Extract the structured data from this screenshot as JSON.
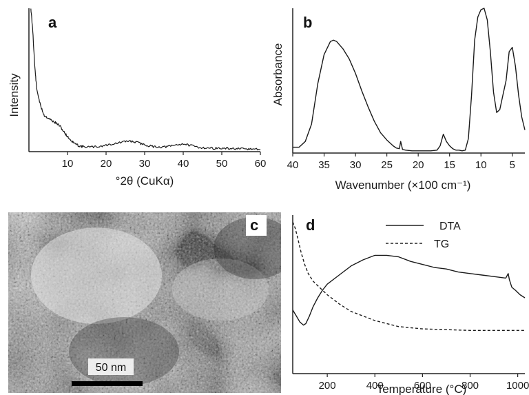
{
  "chart_data": [
    {
      "panel": "a",
      "type": "line",
      "xlabel": "°2θ (CuKα)",
      "ylabel": "Intensity",
      "xlim": [
        0,
        60
      ],
      "xticks": [
        10,
        20,
        30,
        40,
        50,
        60
      ],
      "series": [
        {
          "x": [
            0.5,
            1,
            1.5,
            2,
            3,
            4,
            5,
            6,
            7,
            8,
            9,
            10,
            11,
            12,
            13,
            14,
            16,
            18,
            20,
            22,
            24,
            26,
            28,
            30,
            32,
            34,
            36,
            38,
            40,
            42,
            44,
            46,
            48,
            50,
            52,
            54,
            56,
            58,
            60
          ],
          "y": [
            100,
            84,
            60,
            44,
            32,
            25,
            23.5,
            21.5,
            20,
            18,
            14,
            10.5,
            7.5,
            5.5,
            4,
            3.5,
            3.2,
            3.5,
            4.5,
            5.5,
            6.5,
            7.5,
            6.5,
            4.8,
            3.6,
            3.2,
            3.5,
            4.6,
            5.5,
            4.2,
            3,
            2.6,
            2.4,
            2.2,
            2.2,
            2,
            1.8,
            1.8,
            1.6
          ]
        }
      ]
    },
    {
      "panel": "b",
      "type": "line",
      "xlabel": "Wavenumber (×100 cm⁻¹)",
      "ylabel": "Absorbance",
      "xlim": [
        40,
        3
      ],
      "xticks": [
        40,
        35,
        30,
        25,
        20,
        15,
        10,
        5
      ],
      "series": [
        {
          "x": [
            40,
            39,
            38,
            37,
            36,
            35,
            34,
            33.5,
            33,
            32,
            31,
            30,
            29,
            28,
            27,
            26,
            25,
            24,
            23.5,
            23,
            22.8,
            22.5,
            22,
            21,
            20,
            19,
            18,
            17,
            16.5,
            16,
            15.5,
            15,
            14.5,
            14,
            13.5,
            13,
            12.5,
            12,
            11.5,
            11,
            10.5,
            10,
            9.5,
            9,
            8.5,
            8,
            7.5,
            7,
            6.5,
            6,
            5.5,
            5,
            4.5,
            4,
            3.5,
            3
          ],
          "y": [
            4,
            4,
            8,
            20,
            48,
            68,
            77,
            78,
            77,
            72,
            65,
            55,
            43,
            32,
            22,
            14,
            9,
            5,
            3.5,
            3,
            8,
            2.5,
            2,
            1.5,
            1.5,
            1.5,
            1.5,
            2,
            5,
            13,
            8,
            5,
            3,
            2,
            2,
            1.5,
            2,
            10,
            40,
            78,
            94,
            99,
            100,
            92,
            70,
            42,
            28,
            30,
            40,
            50,
            70,
            73,
            60,
            40,
            25,
            16
          ]
        }
      ]
    },
    {
      "panel": "c",
      "type": "image",
      "scale_bar": "50 nm"
    },
    {
      "panel": "d",
      "type": "line",
      "xlabel": "Temperature (°C)",
      "xlim": [
        55,
        1030
      ],
      "xticks": [
        200,
        400,
        600,
        800,
        1000
      ],
      "legend_position": "top-right",
      "series": [
        {
          "name": "DTA",
          "style": "solid",
          "x": [
            55,
            70,
            85,
            100,
            110,
            125,
            140,
            160,
            180,
            200,
            250,
            300,
            350,
            400,
            450,
            500,
            550,
            600,
            650,
            700,
            750,
            800,
            850,
            900,
            950,
            960,
            965,
            975,
            990,
            1010,
            1030
          ],
          "y": [
            42,
            38,
            34,
            32,
            33,
            38,
            44,
            50,
            55,
            59,
            65,
            71,
            75,
            78,
            78,
            77,
            74,
            72,
            70,
            69,
            67,
            66,
            65,
            64,
            63,
            66,
            62,
            57,
            55,
            52,
            50
          ]
        },
        {
          "name": "TG",
          "style": "dashed",
          "x": [
            55,
            65,
            75,
            90,
            105,
            120,
            140,
            160,
            180,
            200,
            250,
            300,
            350,
            400,
            450,
            500,
            600,
            700,
            800,
            900,
            1000,
            1030
          ],
          "y": [
            100,
            96,
            90,
            80,
            72,
            66,
            61,
            58,
            55,
            52,
            46,
            41,
            38,
            35,
            33,
            31,
            29.5,
            29,
            28.5,
            28.5,
            28.5,
            28.5
          ]
        }
      ]
    }
  ]
}
